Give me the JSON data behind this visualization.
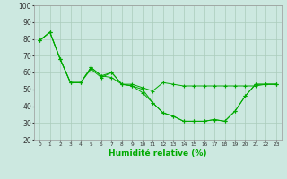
{
  "title": "",
  "xlabel": "Humidité relative (%)",
  "ylabel": "",
  "background_color": "#cce8e0",
  "grid_color": "#aaccbb",
  "line_color": "#00aa00",
  "xlim": [
    -0.5,
    23.5
  ],
  "ylim": [
    20,
    100
  ],
  "yticks": [
    20,
    30,
    40,
    50,
    60,
    70,
    80,
    90,
    100
  ],
  "xticks": [
    0,
    1,
    2,
    3,
    4,
    5,
    6,
    7,
    8,
    9,
    10,
    11,
    12,
    13,
    14,
    15,
    16,
    17,
    18,
    19,
    20,
    21,
    22,
    23
  ],
  "series": [
    [
      79,
      84,
      68,
      54,
      54,
      62,
      57,
      60,
      53,
      53,
      51,
      49,
      54,
      53,
      52,
      52,
      52,
      52,
      52,
      52,
      52,
      52,
      53,
      53
    ],
    [
      79,
      84,
      68,
      54,
      54,
      63,
      58,
      60,
      53,
      52,
      50,
      42,
      36,
      34,
      31,
      31,
      31,
      32,
      31,
      37,
      46,
      53,
      53,
      53
    ],
    [
      79,
      84,
      68,
      54,
      54,
      63,
      58,
      57,
      53,
      52,
      48,
      42,
      36,
      34,
      31,
      31,
      31,
      32,
      31,
      37,
      46,
      53,
      53,
      53
    ]
  ]
}
